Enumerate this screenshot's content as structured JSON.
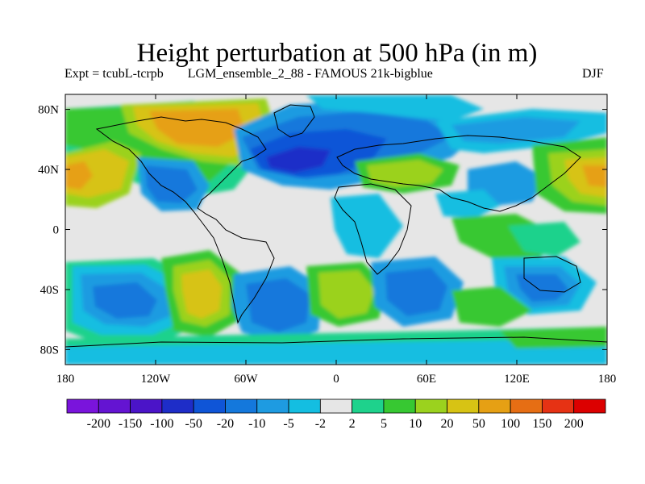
{
  "title": "Height perturbation at 500 hPa (in m)",
  "subtitle": {
    "expt": "Expt = tcubL-tcrpb",
    "run": "LGM_ensemble_2_88 - FAMOUS 21k-bigblue",
    "season": "DJF"
  },
  "axes": {
    "x_ticks": [
      "180",
      "120W",
      "60W",
      "0",
      "60E",
      "120E",
      "180"
    ],
    "y_ticks": [
      "80N",
      "40N",
      "0",
      "40S",
      "80S"
    ]
  },
  "colorbar": {
    "labels": [
      "-200",
      "-150",
      "-100",
      "-50",
      "-20",
      "-10",
      "-5",
      "-2",
      "2",
      "5",
      "10",
      "20",
      "50",
      "100",
      "150",
      "200"
    ],
    "colors": [
      "#7A14DC",
      "#6414D2",
      "#4B14C8",
      "#1E2DC8",
      "#0F55D7",
      "#1478DC",
      "#1E9BE1",
      "#14BEE1",
      "#E6E6E6",
      "#1ED28C",
      "#37C832",
      "#9BD21E",
      "#D7C314",
      "#E6A014",
      "#E66E14",
      "#E63214",
      "#DC0000"
    ]
  },
  "field_colors": {
    "background": "#E6E6E6",
    "land_outline": "#000000"
  }
}
